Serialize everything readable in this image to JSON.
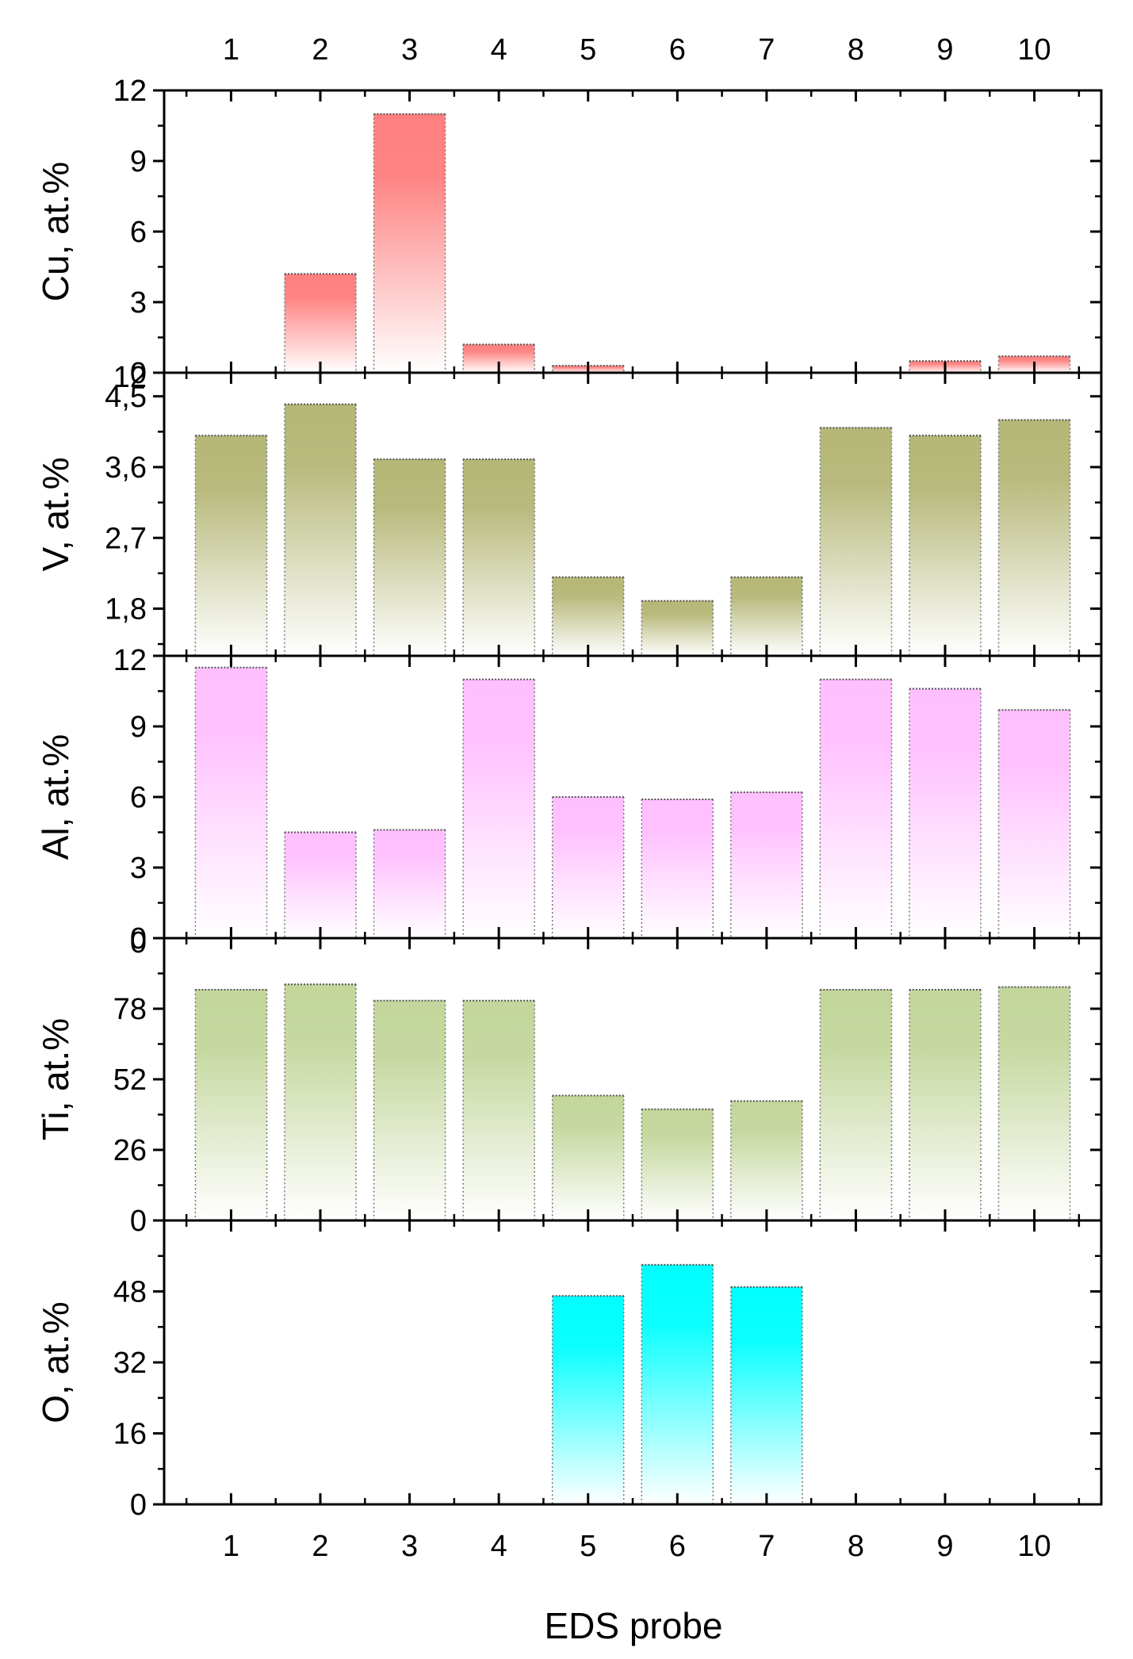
{
  "chart_data": {
    "type": "bar",
    "categories": [
      "1",
      "2",
      "3",
      "4",
      "5",
      "6",
      "7",
      "8",
      "9",
      "10"
    ],
    "xlabel": "EDS probe",
    "panels": [
      {
        "name": "Cu",
        "ylabel": "Cu, at.%",
        "ylim": [
          0,
          12
        ],
        "yticks": [
          0,
          3,
          6,
          9,
          12
        ],
        "ytick_labels": [
          "0",
          "3",
          "6",
          "9",
          "12"
        ],
        "color": "#ff7f7f",
        "values": [
          null,
          4.2,
          11.0,
          1.2,
          0.3,
          null,
          null,
          null,
          0.5,
          0.7
        ]
      },
      {
        "name": "V",
        "ylabel": "V, at.%",
        "ylim": [
          1.2,
          4.8
        ],
        "yticks": [
          1.8,
          2.7,
          3.6,
          4.5
        ],
        "ytick_labels": [
          "1,8",
          "2,7",
          "3,6",
          "4,5"
        ],
        "corner_label": "12",
        "color": "#b5b777",
        "values": [
          4.0,
          4.4,
          3.7,
          3.7,
          2.2,
          1.9,
          2.2,
          4.1,
          4.0,
          4.2
        ]
      },
      {
        "name": "Al",
        "ylabel": "Al, at.%",
        "ylim": [
          0,
          12
        ],
        "yticks": [
          0,
          3,
          6,
          9
        ],
        "ytick_labels": [
          "0",
          "3",
          "6",
          "9"
        ],
        "corner_label": "12",
        "color": "#ffbfff",
        "values": [
          11.5,
          4.5,
          4.6,
          11.0,
          6.0,
          5.9,
          6.2,
          11.0,
          10.6,
          9.7
        ]
      },
      {
        "name": "Ti",
        "ylabel": "Ti, at.%",
        "ylim": [
          0,
          104
        ],
        "yticks": [
          0,
          26,
          52,
          78
        ],
        "ytick_labels": [
          "0",
          "26",
          "52",
          "78"
        ],
        "corner_label": "0",
        "color": "#c3d69b",
        "values": [
          85,
          87,
          81,
          81,
          46,
          41,
          44,
          85,
          85,
          86
        ]
      },
      {
        "name": "O",
        "ylabel": "O, at.%",
        "ylim": [
          0,
          64
        ],
        "yticks": [
          0,
          16,
          32,
          48
        ],
        "ytick_labels": [
          "0",
          "16",
          "32",
          "48"
        ],
        "color": "#00ffff",
        "values": [
          null,
          null,
          null,
          null,
          47,
          54,
          49,
          null,
          null,
          null
        ]
      }
    ]
  }
}
